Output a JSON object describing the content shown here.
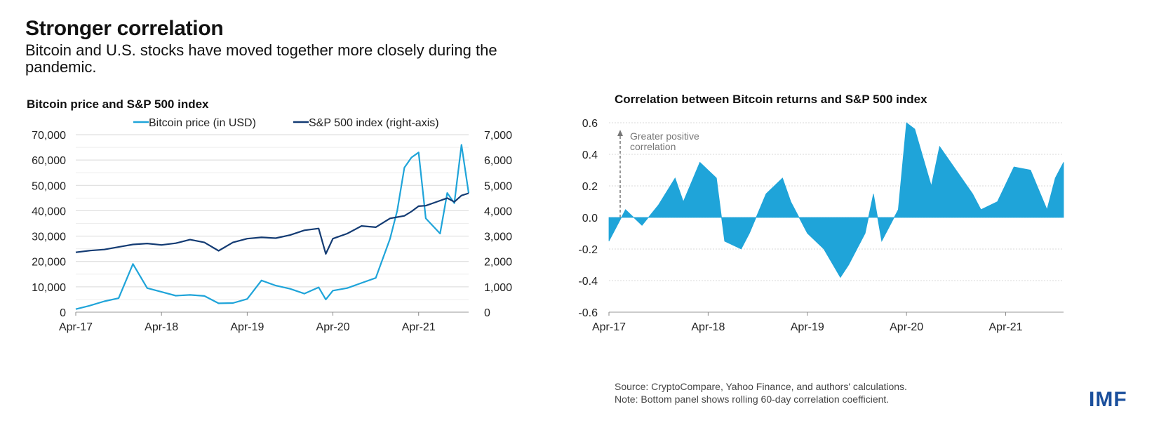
{
  "header": {
    "title": "Stronger correlation",
    "subtitle": "Bitcoin and U.S. stocks have moved together more closely during the pandemic."
  },
  "colors": {
    "bitcoin": "#1fa4d9",
    "sp500": "#133b73",
    "corr": "#1fa4d9",
    "grid": "#d9d9d9"
  },
  "chart_data": [
    {
      "type": "line",
      "title": "Bitcoin price and S&P 500 index",
      "x_labels": [
        "Apr-17",
        "Apr-18",
        "Apr-19",
        "Apr-20",
        "Apr-21"
      ],
      "x_range": [
        "2017-04",
        "2021-11"
      ],
      "ylim_left": [
        0,
        70000
      ],
      "ylim_right": [
        0,
        7000
      ],
      "y_ticks_left": [
        "70,000",
        "60,000",
        "50,000",
        "40,000",
        "30,000",
        "20,000",
        "10,000",
        "0"
      ],
      "y_ticks_right": [
        "7,000",
        "6,000",
        "5,000",
        "4,000",
        "3,000",
        "2,000",
        "1,000",
        "0"
      ],
      "legend_position": "top",
      "grid": true,
      "series": [
        {
          "name": "Bitcoin price (in USD)",
          "axis": "left",
          "x": [
            "2017-04",
            "2017-06",
            "2017-08",
            "2017-10",
            "2017-12",
            "2018-02",
            "2018-04",
            "2018-06",
            "2018-08",
            "2018-10",
            "2018-12",
            "2019-02",
            "2019-04",
            "2019-06",
            "2019-08",
            "2019-10",
            "2019-12",
            "2020-02",
            "2020-03",
            "2020-04",
            "2020-06",
            "2020-08",
            "2020-10",
            "2020-12",
            "2021-01",
            "2021-02",
            "2021-03",
            "2021-04",
            "2021-05",
            "2021-06",
            "2021-07",
            "2021-08",
            "2021-09",
            "2021-10",
            "2021-11"
          ],
          "values": [
            1200,
            2600,
            4300,
            5500,
            19000,
            9500,
            8000,
            6500,
            6800,
            6400,
            3500,
            3600,
            5200,
            12500,
            10500,
            9200,
            7300,
            9800,
            5000,
            8500,
            9500,
            11500,
            13500,
            29000,
            40000,
            57000,
            61000,
            63000,
            37000,
            34000,
            31000,
            47000,
            43000,
            66000,
            47000
          ]
        },
        {
          "name": "S&P 500 index (right-axis)",
          "axis": "right",
          "x": [
            "2017-04",
            "2017-06",
            "2017-08",
            "2017-10",
            "2017-12",
            "2018-02",
            "2018-04",
            "2018-06",
            "2018-08",
            "2018-10",
            "2018-12",
            "2019-02",
            "2019-04",
            "2019-06",
            "2019-08",
            "2019-10",
            "2019-12",
            "2020-02",
            "2020-03",
            "2020-04",
            "2020-06",
            "2020-08",
            "2020-10",
            "2020-12",
            "2021-01",
            "2021-02",
            "2021-03",
            "2021-04",
            "2021-05",
            "2021-06",
            "2021-07",
            "2021-08",
            "2021-09",
            "2021-10",
            "2021-11"
          ],
          "values": [
            2360,
            2430,
            2470,
            2570,
            2670,
            2710,
            2650,
            2720,
            2860,
            2750,
            2420,
            2750,
            2900,
            2950,
            2920,
            3040,
            3230,
            3300,
            2300,
            2900,
            3100,
            3400,
            3350,
            3700,
            3750,
            3800,
            3970,
            4180,
            4200,
            4300,
            4400,
            4500,
            4350,
            4600,
            4690
          ]
        }
      ]
    },
    {
      "type": "area",
      "title": "Correlation between Bitcoin returns and S&P 500 index",
      "x_labels": [
        "Apr-17",
        "Apr-18",
        "Apr-19",
        "Apr-20",
        "Apr-21"
      ],
      "x_range": [
        "2017-04",
        "2021-11"
      ],
      "ylim": [
        -0.6,
        0.6
      ],
      "y_ticks": [
        "0.6",
        "0.4",
        "0.2",
        "0.0",
        "-0.2",
        "-0.4",
        "-0.6"
      ],
      "grid": true,
      "annotation": [
        "Greater positive",
        "correlation"
      ],
      "series": [
        {
          "x": [
            "2017-04",
            "2017-06",
            "2017-08",
            "2017-10",
            "2017-12",
            "2018-01",
            "2018-03",
            "2018-05",
            "2018-06",
            "2018-08",
            "2018-09",
            "2018-11",
            "2019-01",
            "2019-02",
            "2019-04",
            "2019-06",
            "2019-08",
            "2019-09",
            "2019-11",
            "2019-12",
            "2020-01",
            "2020-03",
            "2020-04",
            "2020-05",
            "2020-07",
            "2020-08",
            "2020-10",
            "2020-12",
            "2021-01",
            "2021-03",
            "2021-05",
            "2021-07",
            "2021-09",
            "2021-10",
            "2021-11"
          ],
          "values": [
            -0.15,
            0.05,
            -0.05,
            0.08,
            0.25,
            0.1,
            0.35,
            0.25,
            -0.15,
            -0.2,
            -0.1,
            0.15,
            0.25,
            0.1,
            -0.1,
            -0.2,
            -0.38,
            -0.3,
            -0.1,
            0.15,
            -0.15,
            0.05,
            0.6,
            0.56,
            0.2,
            0.45,
            0.3,
            0.15,
            0.05,
            0.1,
            0.32,
            0.3,
            0.05,
            0.25,
            0.35
          ]
        }
      ]
    }
  ],
  "footer": {
    "source": "Source: CryptoCompare, Yahoo Finance, and authors' calculations.",
    "note": "Note: Bottom panel shows rolling 60-day correlation coefficient.",
    "logo": "IMF"
  }
}
